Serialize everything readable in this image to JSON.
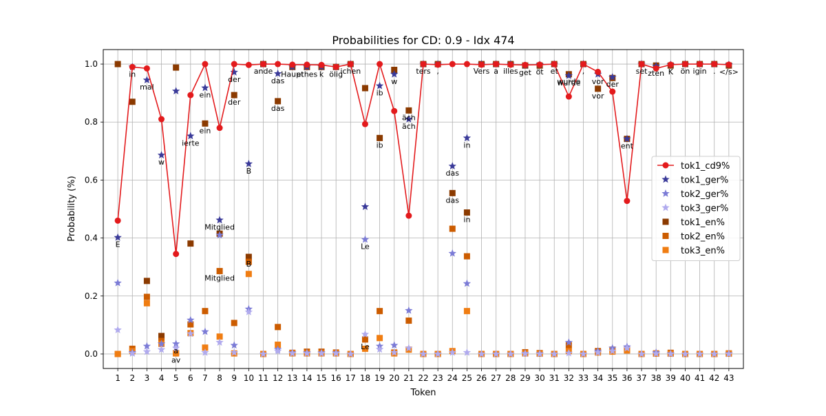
{
  "chart_data": {
    "type": "line",
    "title": "Probabilities for CD: 0.9 - Idx 474",
    "xlabel": "Token",
    "ylabel": "Probability (%)",
    "x": [
      1,
      2,
      3,
      4,
      5,
      6,
      7,
      8,
      9,
      10,
      11,
      12,
      13,
      14,
      15,
      16,
      17,
      18,
      19,
      20,
      21,
      22,
      23,
      24,
      25,
      26,
      27,
      28,
      29,
      30,
      31,
      32,
      33,
      34,
      35,
      36,
      37,
      38,
      39,
      40,
      41,
      42,
      43
    ],
    "xlim": [
      0,
      44
    ],
    "ylim": [
      -0.05,
      1.05
    ],
    "yticks": [
      0.0,
      0.2,
      0.4,
      0.6,
      0.8,
      1.0
    ],
    "grid": true,
    "legend_position": "center-right",
    "series": [
      {
        "name": "tok1_cd9%",
        "marker": "circle-line",
        "color": "#e31a1c",
        "values": [
          0.46,
          0.99,
          0.985,
          0.81,
          0.345,
          0.893,
          1.0,
          0.78,
          1.0,
          0.997,
          1.0,
          1.0,
          0.998,
          0.998,
          0.997,
          0.99,
          1.0,
          0.793,
          1.0,
          0.838,
          0.477,
          1.0,
          0.998,
          1.0,
          1.0,
          0.998,
          1.0,
          0.998,
          0.997,
          0.998,
          1.0,
          0.888,
          1.0,
          0.973,
          0.905,
          0.528,
          1.0,
          0.985,
          0.998,
          1.0,
          1.0,
          1.0,
          0.998
        ]
      },
      {
        "name": "tok1_ger%",
        "marker": "star",
        "color": "#3a3a99",
        "values": [
          0.402,
          0.99,
          0.945,
          0.686,
          0.907,
          0.752,
          0.918,
          0.462,
          0.972,
          0.656,
          1.0,
          0.967,
          0.99,
          0.99,
          0.99,
          0.99,
          1.0,
          0.508,
          0.925,
          0.965,
          0.81,
          1.0,
          1.0,
          0.648,
          0.745,
          1.0,
          1.0,
          1.0,
          0.995,
          0.998,
          1.0,
          0.96,
          1.0,
          0.965,
          0.955,
          0.742,
          1.0,
          0.993,
          0.998,
          1.0,
          1.0,
          1.0,
          0.998
        ]
      },
      {
        "name": "tok2_ger%",
        "marker": "star",
        "color": "#7b7bd6",
        "values": [
          0.245,
          0.005,
          0.027,
          0.035,
          0.035,
          0.117,
          0.077,
          0.41,
          0.03,
          0.155,
          0.0,
          0.016,
          0.004,
          0.004,
          0.004,
          0.004,
          0.0,
          0.395,
          0.027,
          0.03,
          0.15,
          0.0,
          0.0,
          0.347,
          0.243,
          0.0,
          0.0,
          0.0,
          0.002,
          0.001,
          0.0,
          0.04,
          0.0,
          0.01,
          0.02,
          0.025,
          0.0,
          0.005,
          0.001,
          0.0,
          0.0,
          0.0,
          0.001
        ]
      },
      {
        "name": "tok3_ger%",
        "marker": "star",
        "color": "#b0aaee",
        "values": [
          0.083,
          0.002,
          0.008,
          0.015,
          0.02,
          0.07,
          0.005,
          0.04,
          0.005,
          0.145,
          0.0,
          0.01,
          0.002,
          0.002,
          0.002,
          0.002,
          0.0,
          0.068,
          0.016,
          0.005,
          0.02,
          0.0,
          0.0,
          0.005,
          0.005,
          0.0,
          0.0,
          0.0,
          0.001,
          0.0,
          0.0,
          0.003,
          0.0,
          0.005,
          0.01,
          0.02,
          0.0,
          0.001,
          0.0,
          0.0,
          0.0,
          0.0,
          0.0
        ]
      },
      {
        "name": "tok1_en%",
        "marker": "square",
        "color": "#8b3a00",
        "values": [
          1.0,
          0.87,
          0.252,
          0.062,
          0.988,
          0.381,
          0.795,
          0.415,
          0.893,
          0.335,
          1.0,
          0.872,
          0.99,
          0.99,
          0.99,
          0.99,
          1.0,
          0.917,
          0.745,
          0.98,
          0.84,
          1.0,
          1.0,
          0.555,
          0.488,
          1.0,
          1.0,
          1.0,
          0.995,
          0.995,
          1.0,
          0.965,
          1.0,
          0.915,
          0.952,
          0.742,
          1.0,
          0.995,
          0.995,
          1.0,
          1.0,
          1.0,
          0.995
        ]
      },
      {
        "name": "tok2_en%",
        "marker": "square",
        "color": "#cc5c00",
        "values": [
          0.0,
          0.018,
          0.197,
          0.045,
          0.003,
          0.102,
          0.148,
          0.286,
          0.107,
          0.318,
          0.0,
          0.093,
          0.004,
          0.008,
          0.008,
          0.005,
          0.0,
          0.05,
          0.148,
          0.005,
          0.115,
          0.0,
          0.0,
          0.432,
          0.337,
          0.0,
          0.0,
          0.0,
          0.006,
          0.003,
          0.0,
          0.03,
          0.0,
          0.01,
          0.015,
          0.015,
          0.0,
          0.002,
          0.004,
          0.0,
          0.0,
          0.0,
          0.002
        ]
      },
      {
        "name": "tok3_en%",
        "marker": "square",
        "color": "#f07d12",
        "values": [
          0.0,
          0.01,
          0.175,
          0.035,
          0.002,
          0.072,
          0.022,
          0.06,
          0.002,
          0.276,
          0.0,
          0.032,
          0.002,
          0.002,
          0.002,
          0.002,
          0.0,
          0.018,
          0.055,
          0.002,
          0.015,
          0.0,
          0.0,
          0.01,
          0.148,
          0.0,
          0.0,
          0.0,
          0.002,
          0.001,
          0.0,
          0.01,
          0.0,
          0.005,
          0.008,
          0.012,
          0.0,
          0.001,
          0.001,
          0.0,
          0.0,
          0.0,
          0.001
        ]
      }
    ],
    "annotations": [
      {
        "x": 1,
        "y": 0.402,
        "text": "E"
      },
      {
        "x": 2,
        "y": 0.99,
        "text": "in"
      },
      {
        "x": 3,
        "y": 0.945,
        "text": "mal"
      },
      {
        "x": 4,
        "y": 0.686,
        "text": "w"
      },
      {
        "x": 5,
        "y": 0.035,
        "text": "a"
      },
      {
        "x": 5,
        "y": 0.003,
        "text": "av"
      },
      {
        "x": 6,
        "y": 0.752,
        "text": "ierte"
      },
      {
        "x": 7,
        "y": 0.918,
        "text": "ein"
      },
      {
        "x": 7,
        "y": 0.795,
        "text": "ein"
      },
      {
        "x": 8,
        "y": 0.462,
        "text": "Mitglied"
      },
      {
        "x": 8,
        "y": 0.286,
        "text": "Mitglied"
      },
      {
        "x": 9,
        "y": 0.972,
        "text": "der"
      },
      {
        "x": 9,
        "y": 0.893,
        "text": "der"
      },
      {
        "x": 10,
        "y": 0.656,
        "text": "B"
      },
      {
        "x": 10,
        "y": 0.335,
        "text": "B"
      },
      {
        "x": 11,
        "y": 1.0,
        "text": "ande"
      },
      {
        "x": 12,
        "y": 0.967,
        "text": "das"
      },
      {
        "x": 12,
        "y": 0.872,
        "text": "das"
      },
      {
        "x": 13,
        "y": 0.99,
        "text": "Haupt"
      },
      {
        "x": 14,
        "y": 0.99,
        "text": "ethes"
      },
      {
        "x": 15,
        "y": 0.99,
        "text": "k"
      },
      {
        "x": 16,
        "y": 0.99,
        "text": "ölig"
      },
      {
        "x": 17,
        "y": 1.0,
        "text": "ichen"
      },
      {
        "x": 18,
        "y": 0.395,
        "text": "Le"
      },
      {
        "x": 18,
        "y": 0.05,
        "text": "Le"
      },
      {
        "x": 19,
        "y": 0.925,
        "text": "ib"
      },
      {
        "x": 19,
        "y": 0.745,
        "text": "ib"
      },
      {
        "x": 20,
        "y": 0.965,
        "text": "w"
      },
      {
        "x": 21,
        "y": 0.81,
        "text": "äch"
      },
      {
        "x": 21,
        "y": 0.84,
        "text": "äch"
      },
      {
        "x": 22,
        "y": 1.0,
        "text": "ters"
      },
      {
        "x": 23,
        "y": 1.0,
        "text": ","
      },
      {
        "x": 24,
        "y": 0.648,
        "text": "das"
      },
      {
        "x": 24,
        "y": 0.555,
        "text": "das"
      },
      {
        "x": 25,
        "y": 0.745,
        "text": "in"
      },
      {
        "x": 25,
        "y": 0.488,
        "text": "in"
      },
      {
        "x": 26,
        "y": 1.0,
        "text": "Vers"
      },
      {
        "x": 27,
        "y": 1.0,
        "text": "a"
      },
      {
        "x": 28,
        "y": 1.0,
        "text": "illes"
      },
      {
        "x": 29,
        "y": 0.995,
        "text": "get"
      },
      {
        "x": 30,
        "y": 0.998,
        "text": "öt"
      },
      {
        "x": 31,
        "y": 1.0,
        "text": "et"
      },
      {
        "x": 32,
        "y": 0.96,
        "text": "wurde"
      },
      {
        "x": 32,
        "y": 0.965,
        "text": "wurde"
      },
      {
        "x": 33,
        "y": 1.0,
        "text": ","
      },
      {
        "x": 34,
        "y": 0.965,
        "text": "vor"
      },
      {
        "x": 34,
        "y": 0.915,
        "text": "vor"
      },
      {
        "x": 35,
        "y": 0.955,
        "text": "der"
      },
      {
        "x": 36,
        "y": 0.742,
        "text": "ent"
      },
      {
        "x": 37,
        "y": 1.0,
        "text": "set"
      },
      {
        "x": 38,
        "y": 0.993,
        "text": "zten"
      },
      {
        "x": 39,
        "y": 0.998,
        "text": "K"
      },
      {
        "x": 40,
        "y": 1.0,
        "text": "ön"
      },
      {
        "x": 41,
        "y": 1.0,
        "text": "igin"
      },
      {
        "x": 42,
        "y": 1.0,
        "text": "."
      },
      {
        "x": 43,
        "y": 0.998,
        "text": "</s>"
      }
    ]
  }
}
